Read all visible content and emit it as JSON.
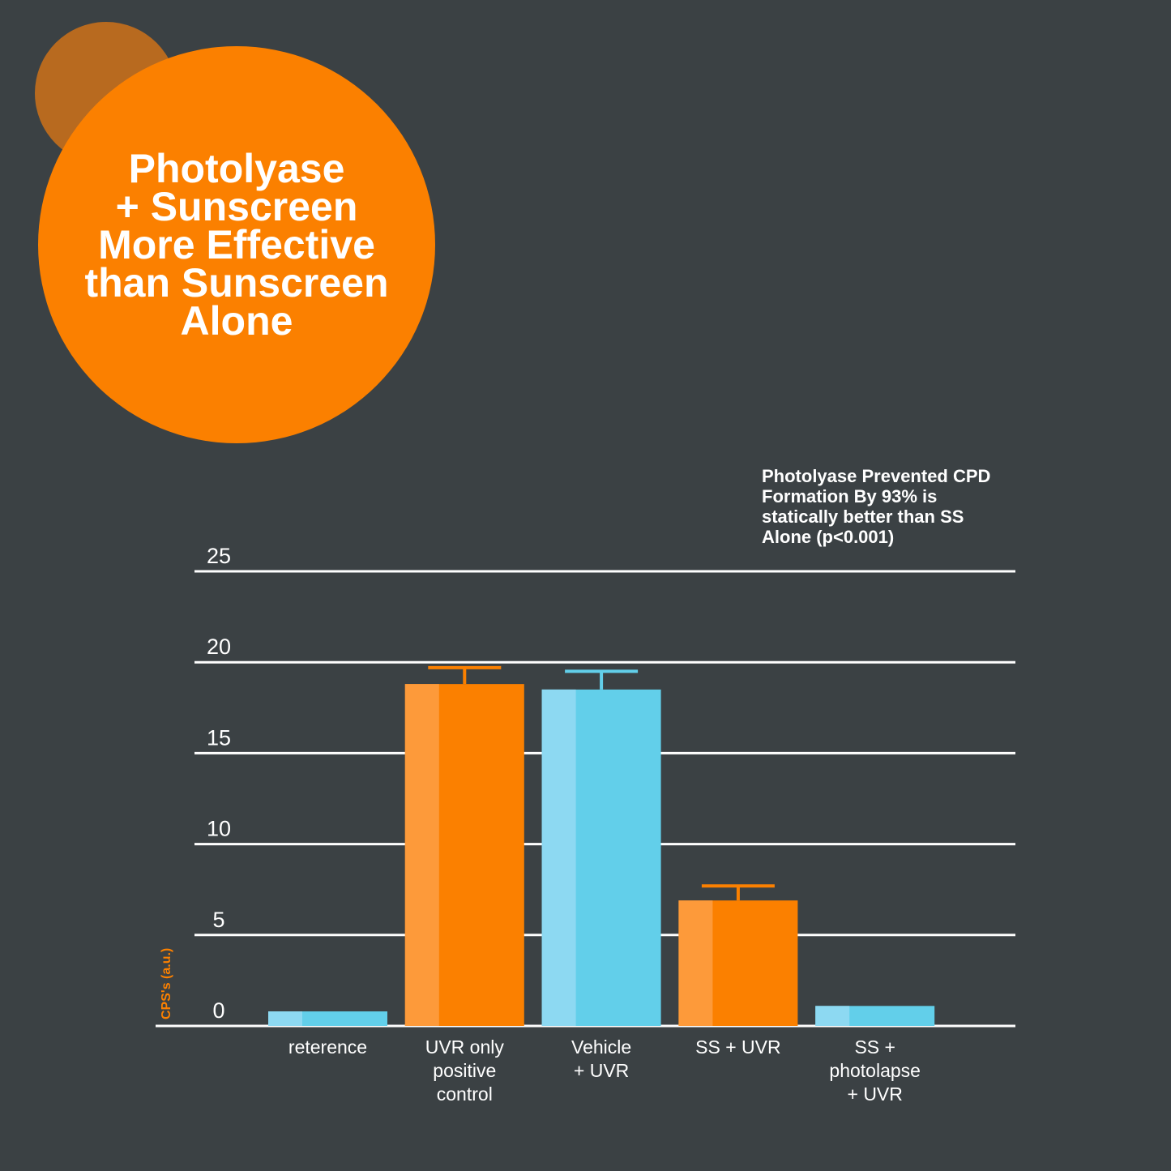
{
  "headline": [
    "Photolyase",
    "+ Sunscreen",
    "More Effective",
    "than Sunscreen",
    "Alone"
  ],
  "colors": {
    "background": "#3b4144",
    "orange": "#fb8000",
    "orange_light": "#fd9a3a",
    "blue": "#62cfea",
    "blue_light": "#8dd9f2",
    "badge_dark": "#b86a1f",
    "ylabel": "#fb8000"
  },
  "chart_data": {
    "type": "bar",
    "title": "",
    "annotation": [
      "Photolyase Prevented CPD",
      "Formation By 93% is",
      "statically better than SS",
      "Alone (p<0.001)"
    ],
    "xlabel": "",
    "ylabel": "CPS's (a.u.)",
    "ylim": [
      0,
      25
    ],
    "yticks": [
      0,
      5,
      10,
      15,
      20,
      25
    ],
    "grid": true,
    "categories": [
      [
        "reterence"
      ],
      [
        "UVR only",
        "positive",
        "control"
      ],
      [
        "Vehicle",
        "+ UVR"
      ],
      [
        "SS + UVR"
      ],
      [
        "SS +",
        "photolapse",
        "+ UVR"
      ]
    ],
    "values": [
      0.8,
      18.8,
      18.5,
      6.9,
      1.1
    ],
    "error_upper": [
      null,
      19.7,
      19.5,
      7.7,
      null
    ],
    "bar_colors": [
      "blue",
      "orange",
      "blue",
      "orange",
      "blue"
    ]
  }
}
